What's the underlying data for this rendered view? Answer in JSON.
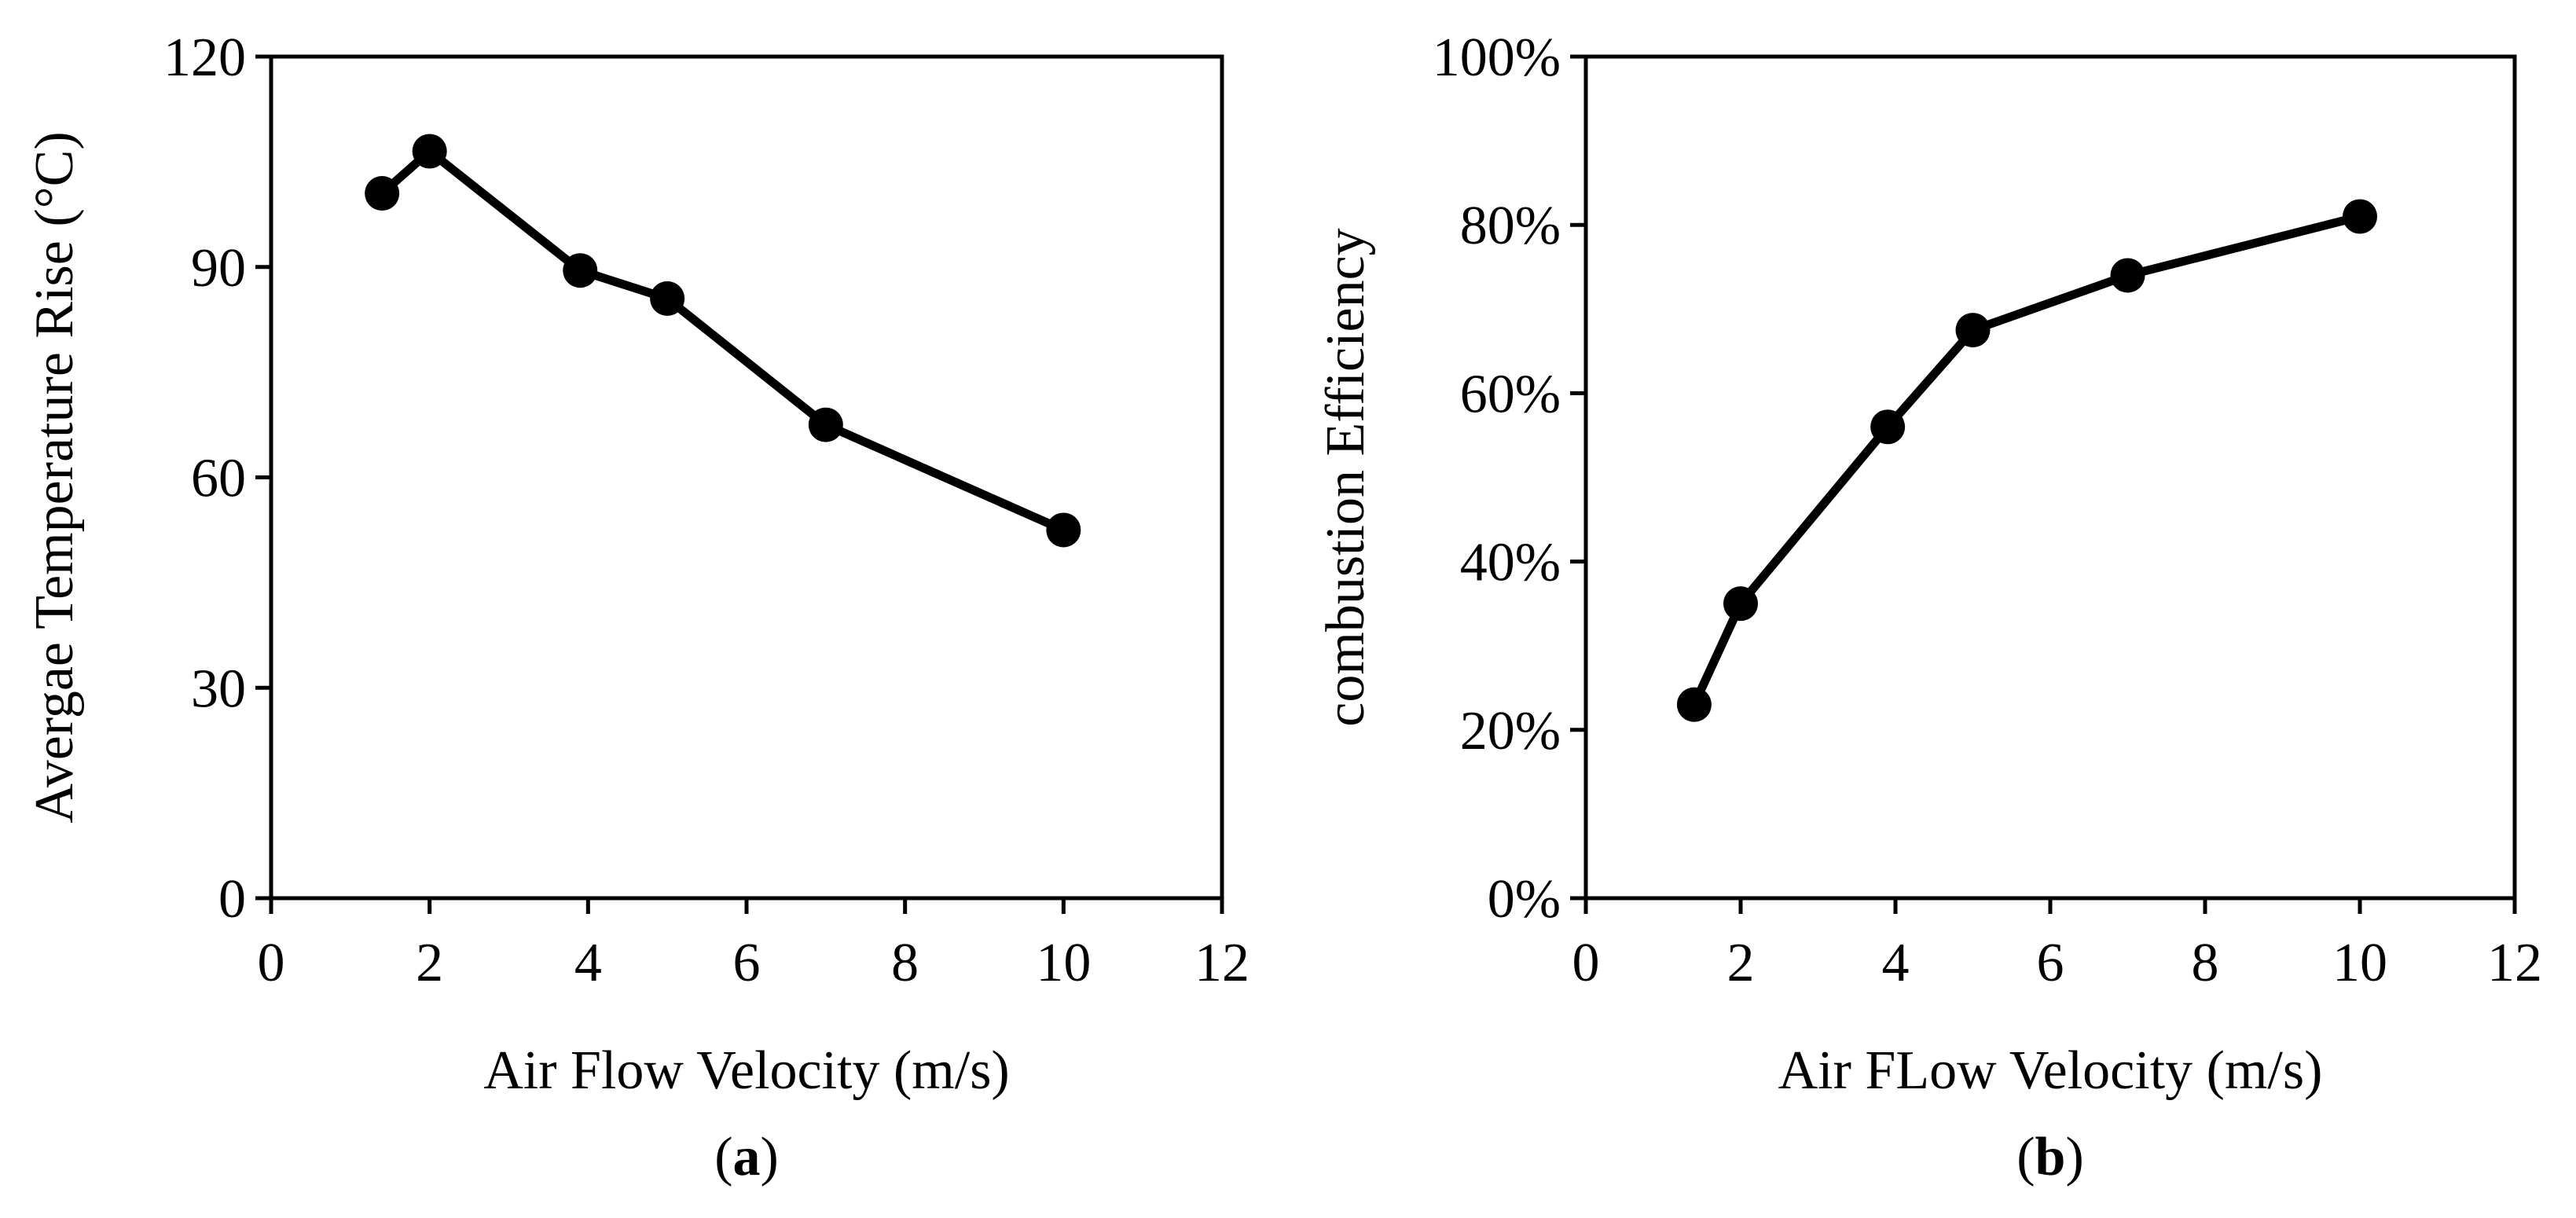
{
  "chart_data": [
    {
      "type": "line",
      "panel_label": "a",
      "title": "",
      "xlabel": "Air Flow Velocity (m/s)",
      "ylabel": "Avergae Temperature Rise (°C)",
      "xlim": [
        0,
        12
      ],
      "ylim": [
        0,
        120
      ],
      "x_ticks": [
        0,
        2,
        4,
        6,
        8,
        10,
        12
      ],
      "y_ticks": [
        0,
        30,
        60,
        90,
        120
      ],
      "y_tick_format": "number",
      "grid": false,
      "legend": "none",
      "series": [
        {
          "name": "Average Temperature Rise",
          "color": "#000000",
          "marker": "circle",
          "x": [
            1.4,
            2,
            3.9,
            5,
            7,
            10
          ],
          "values": [
            100.5,
            106.5,
            89.5,
            85.5,
            67.5,
            52.5
          ]
        }
      ]
    },
    {
      "type": "line",
      "panel_label": "b",
      "title": "",
      "xlabel": "Air FLow Velocity (m/s)",
      "ylabel": "combustion Efficiency",
      "xlim": [
        0,
        12
      ],
      "ylim": [
        0,
        1
      ],
      "x_ticks": [
        0,
        2,
        4,
        6,
        8,
        10,
        12
      ],
      "y_ticks": [
        0,
        0.2,
        0.4,
        0.6,
        0.8,
        1.0
      ],
      "y_tick_format": "percent",
      "grid": false,
      "legend": "none",
      "series": [
        {
          "name": "Combustion Efficiency",
          "color": "#000000",
          "marker": "circle",
          "x": [
            1.4,
            2,
            3.9,
            5,
            7,
            10
          ],
          "values": [
            0.23,
            0.35,
            0.56,
            0.675,
            0.74,
            0.81
          ]
        }
      ]
    }
  ]
}
